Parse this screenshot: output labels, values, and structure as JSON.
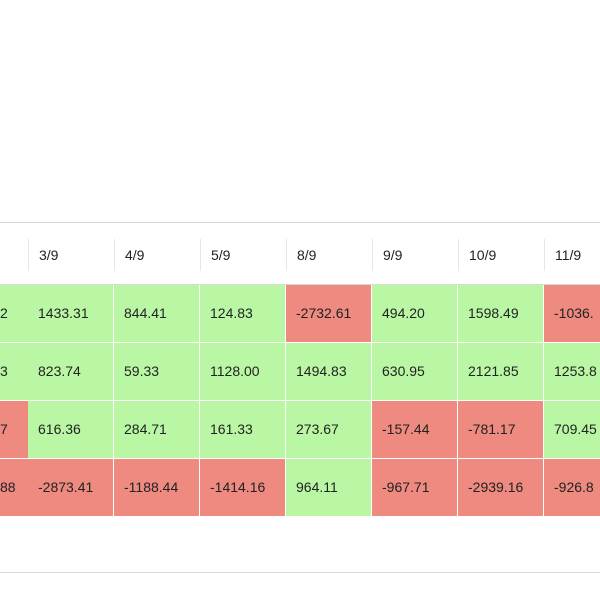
{
  "table": {
    "columns": [
      "3/9",
      "4/9",
      "5/9",
      "8/9",
      "9/9",
      "10/9",
      "11/9"
    ],
    "rows": [
      {
        "clipped_value": "2",
        "clipped_sign": "pos",
        "cells": [
          {
            "value": "1433.31",
            "sign": "pos"
          },
          {
            "value": "844.41",
            "sign": "pos"
          },
          {
            "value": "124.83",
            "sign": "pos"
          },
          {
            "value": "-2732.61",
            "sign": "neg"
          },
          {
            "value": "494.20",
            "sign": "pos"
          },
          {
            "value": "1598.49",
            "sign": "pos"
          },
          {
            "value": "-1036.",
            "sign": "neg"
          }
        ]
      },
      {
        "clipped_value": "3",
        "clipped_sign": "pos",
        "cells": [
          {
            "value": "823.74",
            "sign": "pos"
          },
          {
            "value": "59.33",
            "sign": "pos"
          },
          {
            "value": "1128.00",
            "sign": "pos"
          },
          {
            "value": "1494.83",
            "sign": "pos"
          },
          {
            "value": "630.95",
            "sign": "pos"
          },
          {
            "value": "2121.85",
            "sign": "pos"
          },
          {
            "value": "1253.8",
            "sign": "pos"
          }
        ]
      },
      {
        "clipped_value": "7",
        "clipped_sign": "neg",
        "cells": [
          {
            "value": "616.36",
            "sign": "pos"
          },
          {
            "value": "284.71",
            "sign": "pos"
          },
          {
            "value": "161.33",
            "sign": "pos"
          },
          {
            "value": "273.67",
            "sign": "pos"
          },
          {
            "value": "-157.44",
            "sign": "neg"
          },
          {
            "value": "-781.17",
            "sign": "neg"
          },
          {
            "value": "709.45",
            "sign": "pos"
          }
        ]
      },
      {
        "clipped_value": "88",
        "clipped_sign": "neg",
        "cells": [
          {
            "value": "-2873.41",
            "sign": "neg"
          },
          {
            "value": "-1188.44",
            "sign": "neg"
          },
          {
            "value": "-1414.16",
            "sign": "neg"
          },
          {
            "value": "964.11",
            "sign": "pos"
          },
          {
            "value": "-967.71",
            "sign": "neg"
          },
          {
            "value": "-2939.16",
            "sign": "neg"
          },
          {
            "value": "-926.8",
            "sign": "neg"
          }
        ]
      }
    ]
  },
  "colors": {
    "positive": "#baf7a5",
    "negative": "#ee8a80"
  }
}
